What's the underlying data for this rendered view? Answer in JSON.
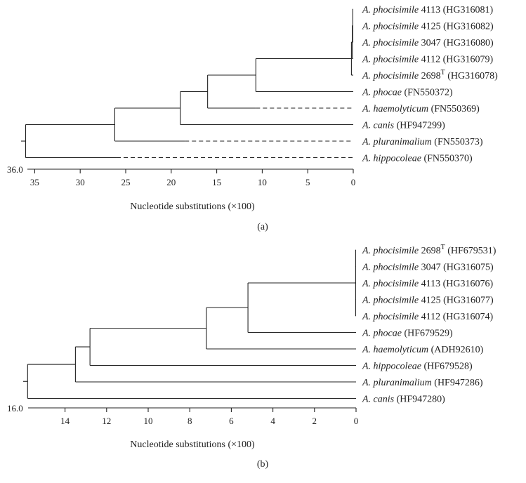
{
  "panels": [
    {
      "panel_label": "(a)",
      "axis_title": "Nucleotide substitutions (×100)",
      "axis_max_label": "36.0",
      "axis_max": 36,
      "ticks": [
        35,
        30,
        25,
        20,
        15,
        10,
        5,
        0
      ],
      "leaves": [
        {
          "species": "A. phocisimile",
          "strain": "4113",
          "sup": "",
          "acc": "(HG316081)"
        },
        {
          "species": "A. phocisimile",
          "strain": "4125",
          "sup": "",
          "acc": "(HG316082)"
        },
        {
          "species": "A. phocisimile",
          "strain": "3047",
          "sup": "",
          "acc": "(HG316080)"
        },
        {
          "species": "A. phocisimile",
          "strain": "4112",
          "sup": "",
          "acc": "(HG316079)"
        },
        {
          "species": "A. phocisimile",
          "strain": "2698",
          "sup": "T",
          "acc": "(HG316078)"
        },
        {
          "species": "A. phocae",
          "strain": "",
          "sup": "",
          "acc": "(FN550372)"
        },
        {
          "species": "A. haemolyticum",
          "strain": "",
          "sup": "",
          "acc": "(FN550369)"
        },
        {
          "species": "A. canis",
          "strain": "",
          "sup": "",
          "acc": "(HF947299)"
        },
        {
          "species": "A. pluranimalium",
          "strain": "",
          "sup": "",
          "acc": "(FN550373)"
        },
        {
          "species": "A. hippocoleae",
          "strain": "",
          "sup": "",
          "acc": "(FN550370)"
        }
      ],
      "tree": {
        "h": 36,
        "c": [
          {
            "h": 26.2,
            "c": [
              {
                "h": 19,
                "c": [
                  {
                    "h": 16,
                    "c": [
                      {
                        "h": 10.7,
                        "c": [
                          {
                            "h": 0.2,
                            "c": [
                              {
                                "h": 0.1,
                                "c": [
                                  {
                                    "h": 0.05,
                                    "c": [
                                      {
                                        "l": 0
                                      },
                                      {
                                        "l": 1
                                      },
                                      {
                                        "l": 2
                                      }
                                    ]
                                  },
                                  {
                                    "l": 3
                                  }
                                ]
                              },
                              {
                                "l": 4
                              }
                            ]
                          },
                          {
                            "l": 5
                          }
                        ]
                      },
                      {
                        "l": 6,
                        "dash_from": 10.7
                      }
                    ]
                  },
                  {
                    "l": 7
                  }
                ]
              },
              {
                "l": 8,
                "dash_from": 18.5
              }
            ]
          },
          {
            "l": 9,
            "dash_from": 26
          }
        ]
      }
    },
    {
      "panel_label": "(b)",
      "axis_title": "Nucleotide substitutions (×100)",
      "axis_max_label": "16.0",
      "axis_max": 16,
      "ticks": [
        14,
        12,
        10,
        8,
        6,
        4,
        2,
        0
      ],
      "leaves": [
        {
          "species": "A. phocisimile",
          "strain": "2698",
          "sup": "T",
          "acc": "(HF679531)"
        },
        {
          "species": "A. phocisimile",
          "strain": "3047",
          "sup": "",
          "acc": "(HG316075)"
        },
        {
          "species": "A. phocisimile",
          "strain": "4113",
          "sup": "",
          "acc": "(HG316076)"
        },
        {
          "species": "A. phocisimile",
          "strain": "4125",
          "sup": "",
          "acc": "(HG316077)"
        },
        {
          "species": "A. phocisimile",
          "strain": "4112",
          "sup": "",
          "acc": "(HG316074)"
        },
        {
          "species": "A. phocae",
          "strain": "",
          "sup": "",
          "acc": "(HF679529)"
        },
        {
          "species": "A. haemolyticum",
          "strain": "",
          "sup": "",
          "acc": "(ADH92610)"
        },
        {
          "species": "A. hippocoleae",
          "strain": "",
          "sup": "",
          "acc": "(HF679528)"
        },
        {
          "species": "A. pluranimalium",
          "strain": "",
          "sup": "",
          "acc": "(HF947286)"
        },
        {
          "species": "A. canis",
          "strain": "",
          "sup": "",
          "acc": "(HF947280)"
        }
      ],
      "tree": {
        "h": 15.8,
        "c": [
          {
            "h": 13.5,
            "c": [
              {
                "h": 12.8,
                "c": [
                  {
                    "h": 7.2,
                    "c": [
                      {
                        "h": 5.2,
                        "c": [
                          {
                            "h": 0.02,
                            "c": [
                              {
                                "l": 0
                              },
                              {
                                "l": 1
                              },
                              {
                                "l": 2
                              },
                              {
                                "l": 3
                              },
                              {
                                "l": 4
                              }
                            ]
                          },
                          {
                            "l": 5
                          }
                        ]
                      },
                      {
                        "l": 6
                      }
                    ]
                  },
                  {
                    "l": 7
                  }
                ]
              },
              {
                "l": 8
              }
            ]
          },
          {
            "l": 9
          }
        ]
      }
    }
  ]
}
